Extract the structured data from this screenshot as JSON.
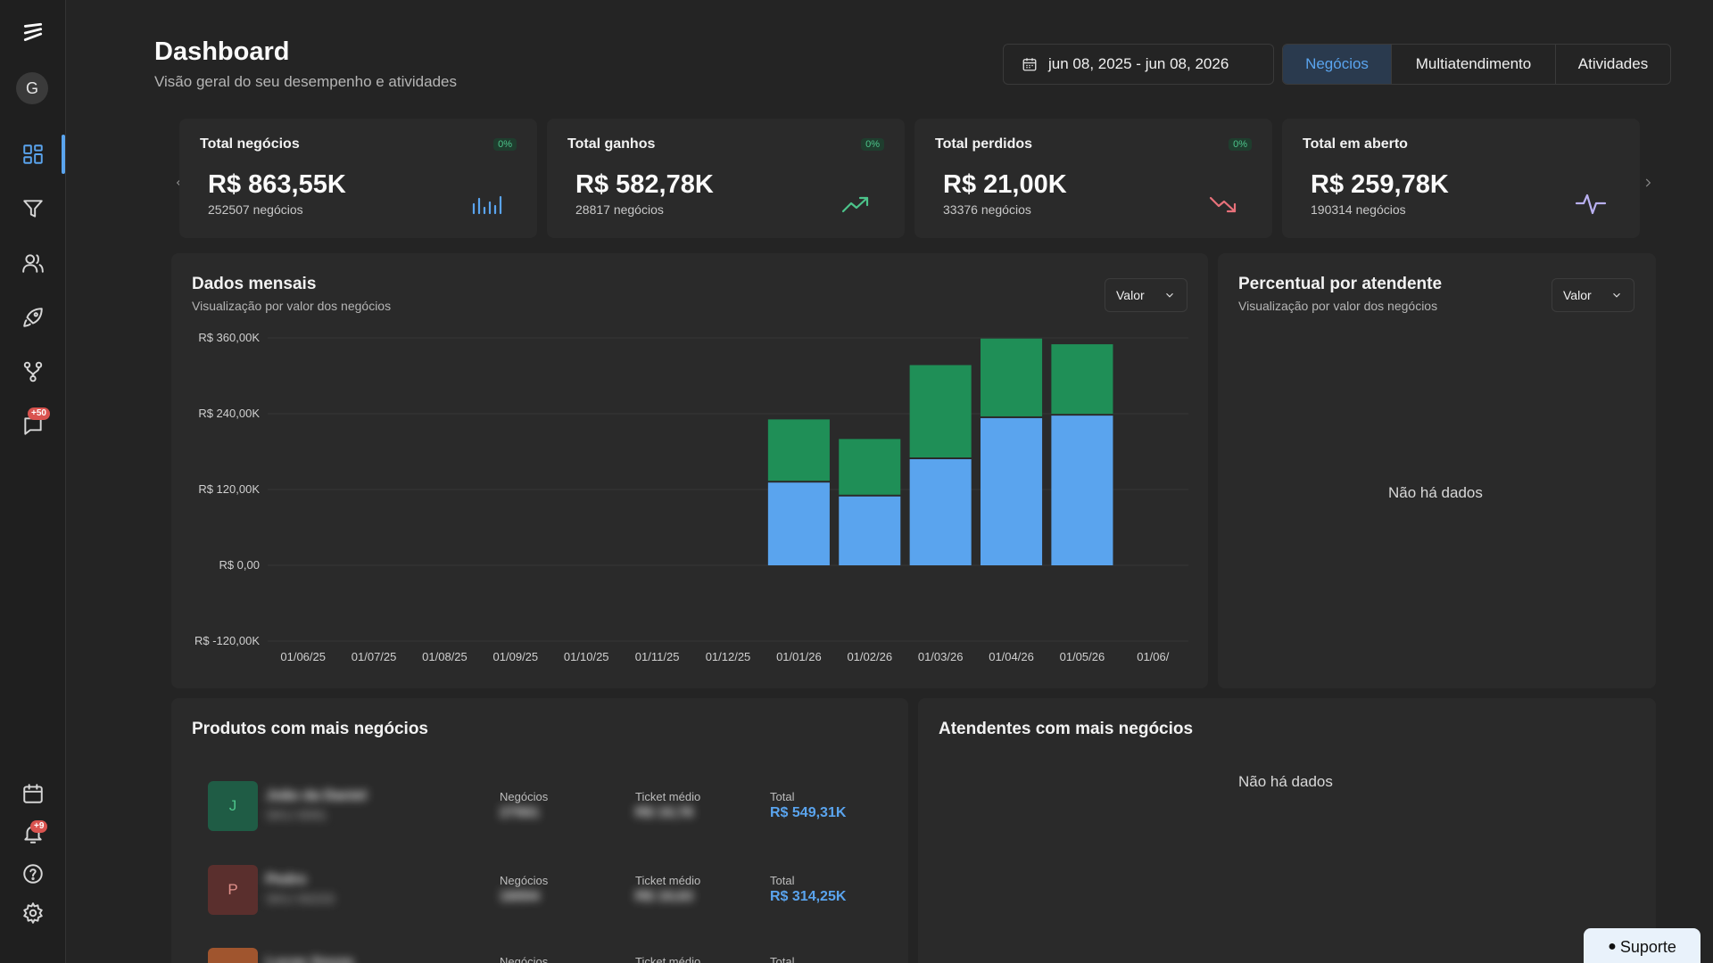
{
  "app": {
    "logo": "app-logo",
    "user_initial": "G"
  },
  "sidebar": {
    "items": [
      {
        "name": "dashboard",
        "icon": "dashboard-grid-icon"
      },
      {
        "name": "funnel",
        "icon": "filter-funnel-icon"
      },
      {
        "name": "contacts",
        "icon": "users-icon"
      },
      {
        "name": "campaigns",
        "icon": "rocket-icon"
      },
      {
        "name": "integrations",
        "icon": "branch-icon"
      },
      {
        "name": "chat",
        "icon": "chat-icon",
        "badge": "+50"
      }
    ],
    "bottom_items": [
      {
        "name": "calendar",
        "icon": "calendar-icon"
      },
      {
        "name": "notifications",
        "icon": "bell-icon",
        "badge": "+9"
      },
      {
        "name": "help",
        "icon": "help-icon"
      },
      {
        "name": "settings",
        "icon": "gear-icon"
      }
    ]
  },
  "header": {
    "title": "Dashboard",
    "subtitle": "Visão geral do seu desempenho e atividades",
    "date_range": "jun 08, 2025 - jun 08, 2026",
    "tabs": [
      {
        "label": "Negócios",
        "active": true
      },
      {
        "label": "Multiatendimento",
        "active": false
      },
      {
        "label": "Atividades",
        "active": false
      }
    ]
  },
  "kpis": [
    {
      "title": "Total negócios",
      "pct": "0%",
      "value": "R$ 863,55K",
      "sub": "252507 negócios",
      "icon": "bar-chart-icon",
      "icon_color": "#5aa4ee"
    },
    {
      "title": "Total ganhos",
      "pct": "0%",
      "value": "R$ 582,78K",
      "sub": "28817 negócios",
      "icon": "trending-up-icon",
      "icon_color": "#4cc38a"
    },
    {
      "title": "Total perdidos",
      "pct": "0%",
      "value": "R$ 21,00K",
      "sub": "33376 negócios",
      "icon": "trending-down-icon",
      "icon_color": "#e8717a"
    },
    {
      "title": "Total em aberto",
      "pct": "",
      "value": "R$ 259,78K",
      "sub": "190314 negócios",
      "icon": "activity-icon",
      "icon_color": "#b9b0f0"
    }
  ],
  "monthly": {
    "title": "Dados mensais",
    "subtitle": "Visualização por valor dos negócios",
    "select": "Valor"
  },
  "per_agent": {
    "title": "Percentual por atendente",
    "subtitle": "Visualização por valor dos negócios",
    "select": "Valor",
    "empty": "Não há dados"
  },
  "products": {
    "title": "Produtos com mais negócios",
    "col_deals": "Negócios",
    "col_ticket": "Ticket médio",
    "col_total": "Total",
    "rows": [
      {
        "initial": "J",
        "name": "João da Daniel",
        "sub": "SKU 0091",
        "deals": "27561",
        "ticket": "R$ 19,78",
        "total": "R$ 549,31K",
        "color": "#1f5c45",
        "text_color": "#4cc38a"
      },
      {
        "initial": "P",
        "name": "Pedro",
        "sub": "SKU 00233",
        "deals": "16004",
        "ticket": "R$ 19,63",
        "total": "R$ 314,25K",
        "color": "#5a2f2d",
        "text_color": "#e0908a"
      },
      {
        "initial": "L",
        "name": "Lucas Souza",
        "sub": "",
        "deals": "",
        "ticket": "",
        "total": "",
        "color": "#a0552e",
        "text_color": "#f3c3a0"
      }
    ]
  },
  "agents": {
    "title": "Atendentes com mais negócios",
    "empty": "Não há dados"
  },
  "support": {
    "label": "Suporte",
    "icon": "chat-bubble-icon"
  },
  "chart_data": {
    "type": "bar",
    "stacked": true,
    "categories": [
      "01/06/25",
      "01/07/25",
      "01/08/25",
      "01/09/25",
      "01/10/25",
      "01/11/25",
      "01/12/25",
      "01/01/26",
      "01/02/26",
      "01/03/26",
      "01/04/26",
      "01/05/26",
      "01/06/"
    ],
    "series": [
      {
        "values": [
          0,
          0,
          0,
          0,
          0,
          0,
          0,
          131,
          109,
          168,
          233,
          237,
          0
        ],
        "color": "#5aa4ee"
      },
      {
        "values": [
          0,
          0,
          0,
          0,
          0,
          0,
          0,
          100,
          91,
          149,
          126,
          113,
          0
        ],
        "color": "#1f8f57"
      }
    ],
    "ylim": [
      -120,
      360
    ],
    "yticks": [
      360,
      240,
      120,
      0,
      -120
    ],
    "ytick_labels": [
      "R$ 360,00K",
      "R$ 240,00K",
      "R$ 120,00K",
      "R$ 0,00",
      "R$ -120,00K"
    ],
    "grid": true
  }
}
